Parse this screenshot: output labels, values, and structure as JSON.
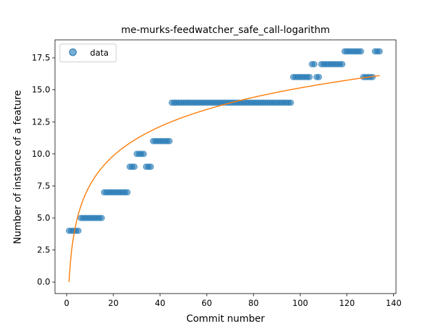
{
  "chart_data": {
    "type": "scatter",
    "title": "me-murks-feedwatcher_safe_call-logarithm",
    "xlabel": "Commit number",
    "ylabel": "Number of instance of a feature",
    "xlim": [
      -5,
      141
    ],
    "ylim": [
      -0.9,
      18.9
    ],
    "xticks": [
      0,
      20,
      40,
      60,
      80,
      100,
      120,
      140
    ],
    "xtick_labels": [
      "0",
      "20",
      "40",
      "60",
      "80",
      "100",
      "120",
      "140"
    ],
    "yticks": [
      0,
      2.5,
      5,
      7.5,
      10,
      12.5,
      15,
      17.5
    ],
    "ytick_labels": [
      "0.0",
      "2.5",
      "5.0",
      "7.5",
      "10.0",
      "12.5",
      "15.0",
      "17.5"
    ],
    "legend": {
      "position": "top-left",
      "entries": [
        "data"
      ]
    },
    "colors": {
      "data": "#1f77b4",
      "fit": "#ff7f0e"
    },
    "series": [
      {
        "name": "data",
        "kind": "scatter",
        "points": [
          [
            1,
            4
          ],
          [
            2,
            4
          ],
          [
            3,
            4
          ],
          [
            4,
            4
          ],
          [
            5,
            4
          ],
          [
            6,
            5
          ],
          [
            7,
            5
          ],
          [
            8,
            5
          ],
          [
            9,
            5
          ],
          [
            10,
            5
          ],
          [
            11,
            5
          ],
          [
            12,
            5
          ],
          [
            13,
            5
          ],
          [
            14,
            5
          ],
          [
            15,
            5
          ],
          [
            16,
            7
          ],
          [
            17,
            7
          ],
          [
            18,
            7
          ],
          [
            19,
            7
          ],
          [
            20,
            7
          ],
          [
            21,
            7
          ],
          [
            22,
            7
          ],
          [
            23,
            7
          ],
          [
            24,
            7
          ],
          [
            25,
            7
          ],
          [
            26,
            7
          ],
          [
            27,
            9
          ],
          [
            28,
            9
          ],
          [
            29,
            9
          ],
          [
            30,
            10
          ],
          [
            31,
            10
          ],
          [
            32,
            10
          ],
          [
            33,
            10
          ],
          [
            34,
            9
          ],
          [
            35,
            9
          ],
          [
            36,
            9
          ],
          [
            37,
            11
          ],
          [
            38,
            11
          ],
          [
            39,
            11
          ],
          [
            40,
            11
          ],
          [
            41,
            11
          ],
          [
            42,
            11
          ],
          [
            43,
            11
          ],
          [
            44,
            11
          ],
          [
            45,
            14
          ],
          [
            46,
            14
          ],
          [
            47,
            14
          ],
          [
            48,
            14
          ],
          [
            49,
            14
          ],
          [
            50,
            14
          ],
          [
            51,
            14
          ],
          [
            52,
            14
          ],
          [
            53,
            14
          ],
          [
            54,
            14
          ],
          [
            55,
            14
          ],
          [
            56,
            14
          ],
          [
            57,
            14
          ],
          [
            58,
            14
          ],
          [
            59,
            14
          ],
          [
            60,
            14
          ],
          [
            61,
            14
          ],
          [
            62,
            14
          ],
          [
            63,
            14
          ],
          [
            64,
            14
          ],
          [
            65,
            14
          ],
          [
            66,
            14
          ],
          [
            67,
            14
          ],
          [
            68,
            14
          ],
          [
            69,
            14
          ],
          [
            70,
            14
          ],
          [
            71,
            14
          ],
          [
            72,
            14
          ],
          [
            73,
            14
          ],
          [
            74,
            14
          ],
          [
            75,
            14
          ],
          [
            76,
            14
          ],
          [
            77,
            14
          ],
          [
            78,
            14
          ],
          [
            79,
            14
          ],
          [
            80,
            14
          ],
          [
            81,
            14
          ],
          [
            82,
            14
          ],
          [
            83,
            14
          ],
          [
            84,
            14
          ],
          [
            85,
            14
          ],
          [
            86,
            14
          ],
          [
            87,
            14
          ],
          [
            88,
            14
          ],
          [
            89,
            14
          ],
          [
            90,
            14
          ],
          [
            91,
            14
          ],
          [
            92,
            14
          ],
          [
            93,
            14
          ],
          [
            94,
            14
          ],
          [
            95,
            14
          ],
          [
            96,
            14
          ],
          [
            97,
            16
          ],
          [
            98,
            16
          ],
          [
            99,
            16
          ],
          [
            100,
            16
          ],
          [
            101,
            16
          ],
          [
            102,
            16
          ],
          [
            103,
            16
          ],
          [
            104,
            16
          ],
          [
            105,
            17
          ],
          [
            106,
            17
          ],
          [
            107,
            16
          ],
          [
            108,
            16
          ],
          [
            109,
            17
          ],
          [
            110,
            17
          ],
          [
            111,
            17
          ],
          [
            112,
            17
          ],
          [
            113,
            17
          ],
          [
            114,
            17
          ],
          [
            115,
            17
          ],
          [
            116,
            17
          ],
          [
            117,
            17
          ],
          [
            118,
            17
          ],
          [
            119,
            18
          ],
          [
            120,
            18
          ],
          [
            121,
            18
          ],
          [
            122,
            18
          ],
          [
            123,
            18
          ],
          [
            124,
            18
          ],
          [
            125,
            18
          ],
          [
            126,
            18
          ],
          [
            127,
            16
          ],
          [
            128,
            16
          ],
          [
            129,
            16
          ],
          [
            130,
            16
          ],
          [
            131,
            16
          ],
          [
            132,
            18
          ],
          [
            133,
            18
          ],
          [
            134,
            18
          ]
        ]
      },
      {
        "name": "",
        "kind": "line",
        "equation": "y = 3.29 * ln(x)",
        "coef": 3.29,
        "x_range": [
          1,
          134
        ]
      }
    ]
  }
}
